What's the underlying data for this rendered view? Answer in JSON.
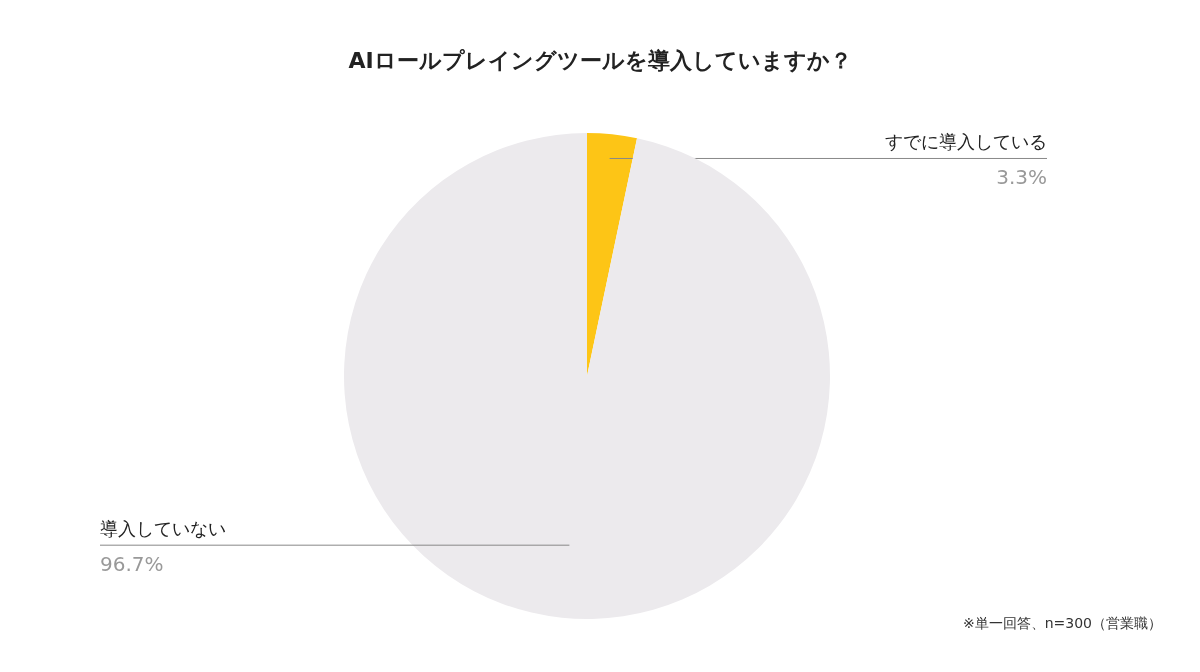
{
  "chart_data": {
    "type": "pie",
    "title": "AIロールプレイングツールを導入していますか？",
    "categories": [
      "すでに導入している",
      "導入していない"
    ],
    "values": [
      3.3,
      96.7
    ],
    "colors": [
      "#fdc516",
      "#eceaed"
    ],
    "value_labels": [
      "3.3%",
      "96.7%"
    ],
    "annotations": [
      "※単一回答、n=300（営業職）"
    ]
  }
}
